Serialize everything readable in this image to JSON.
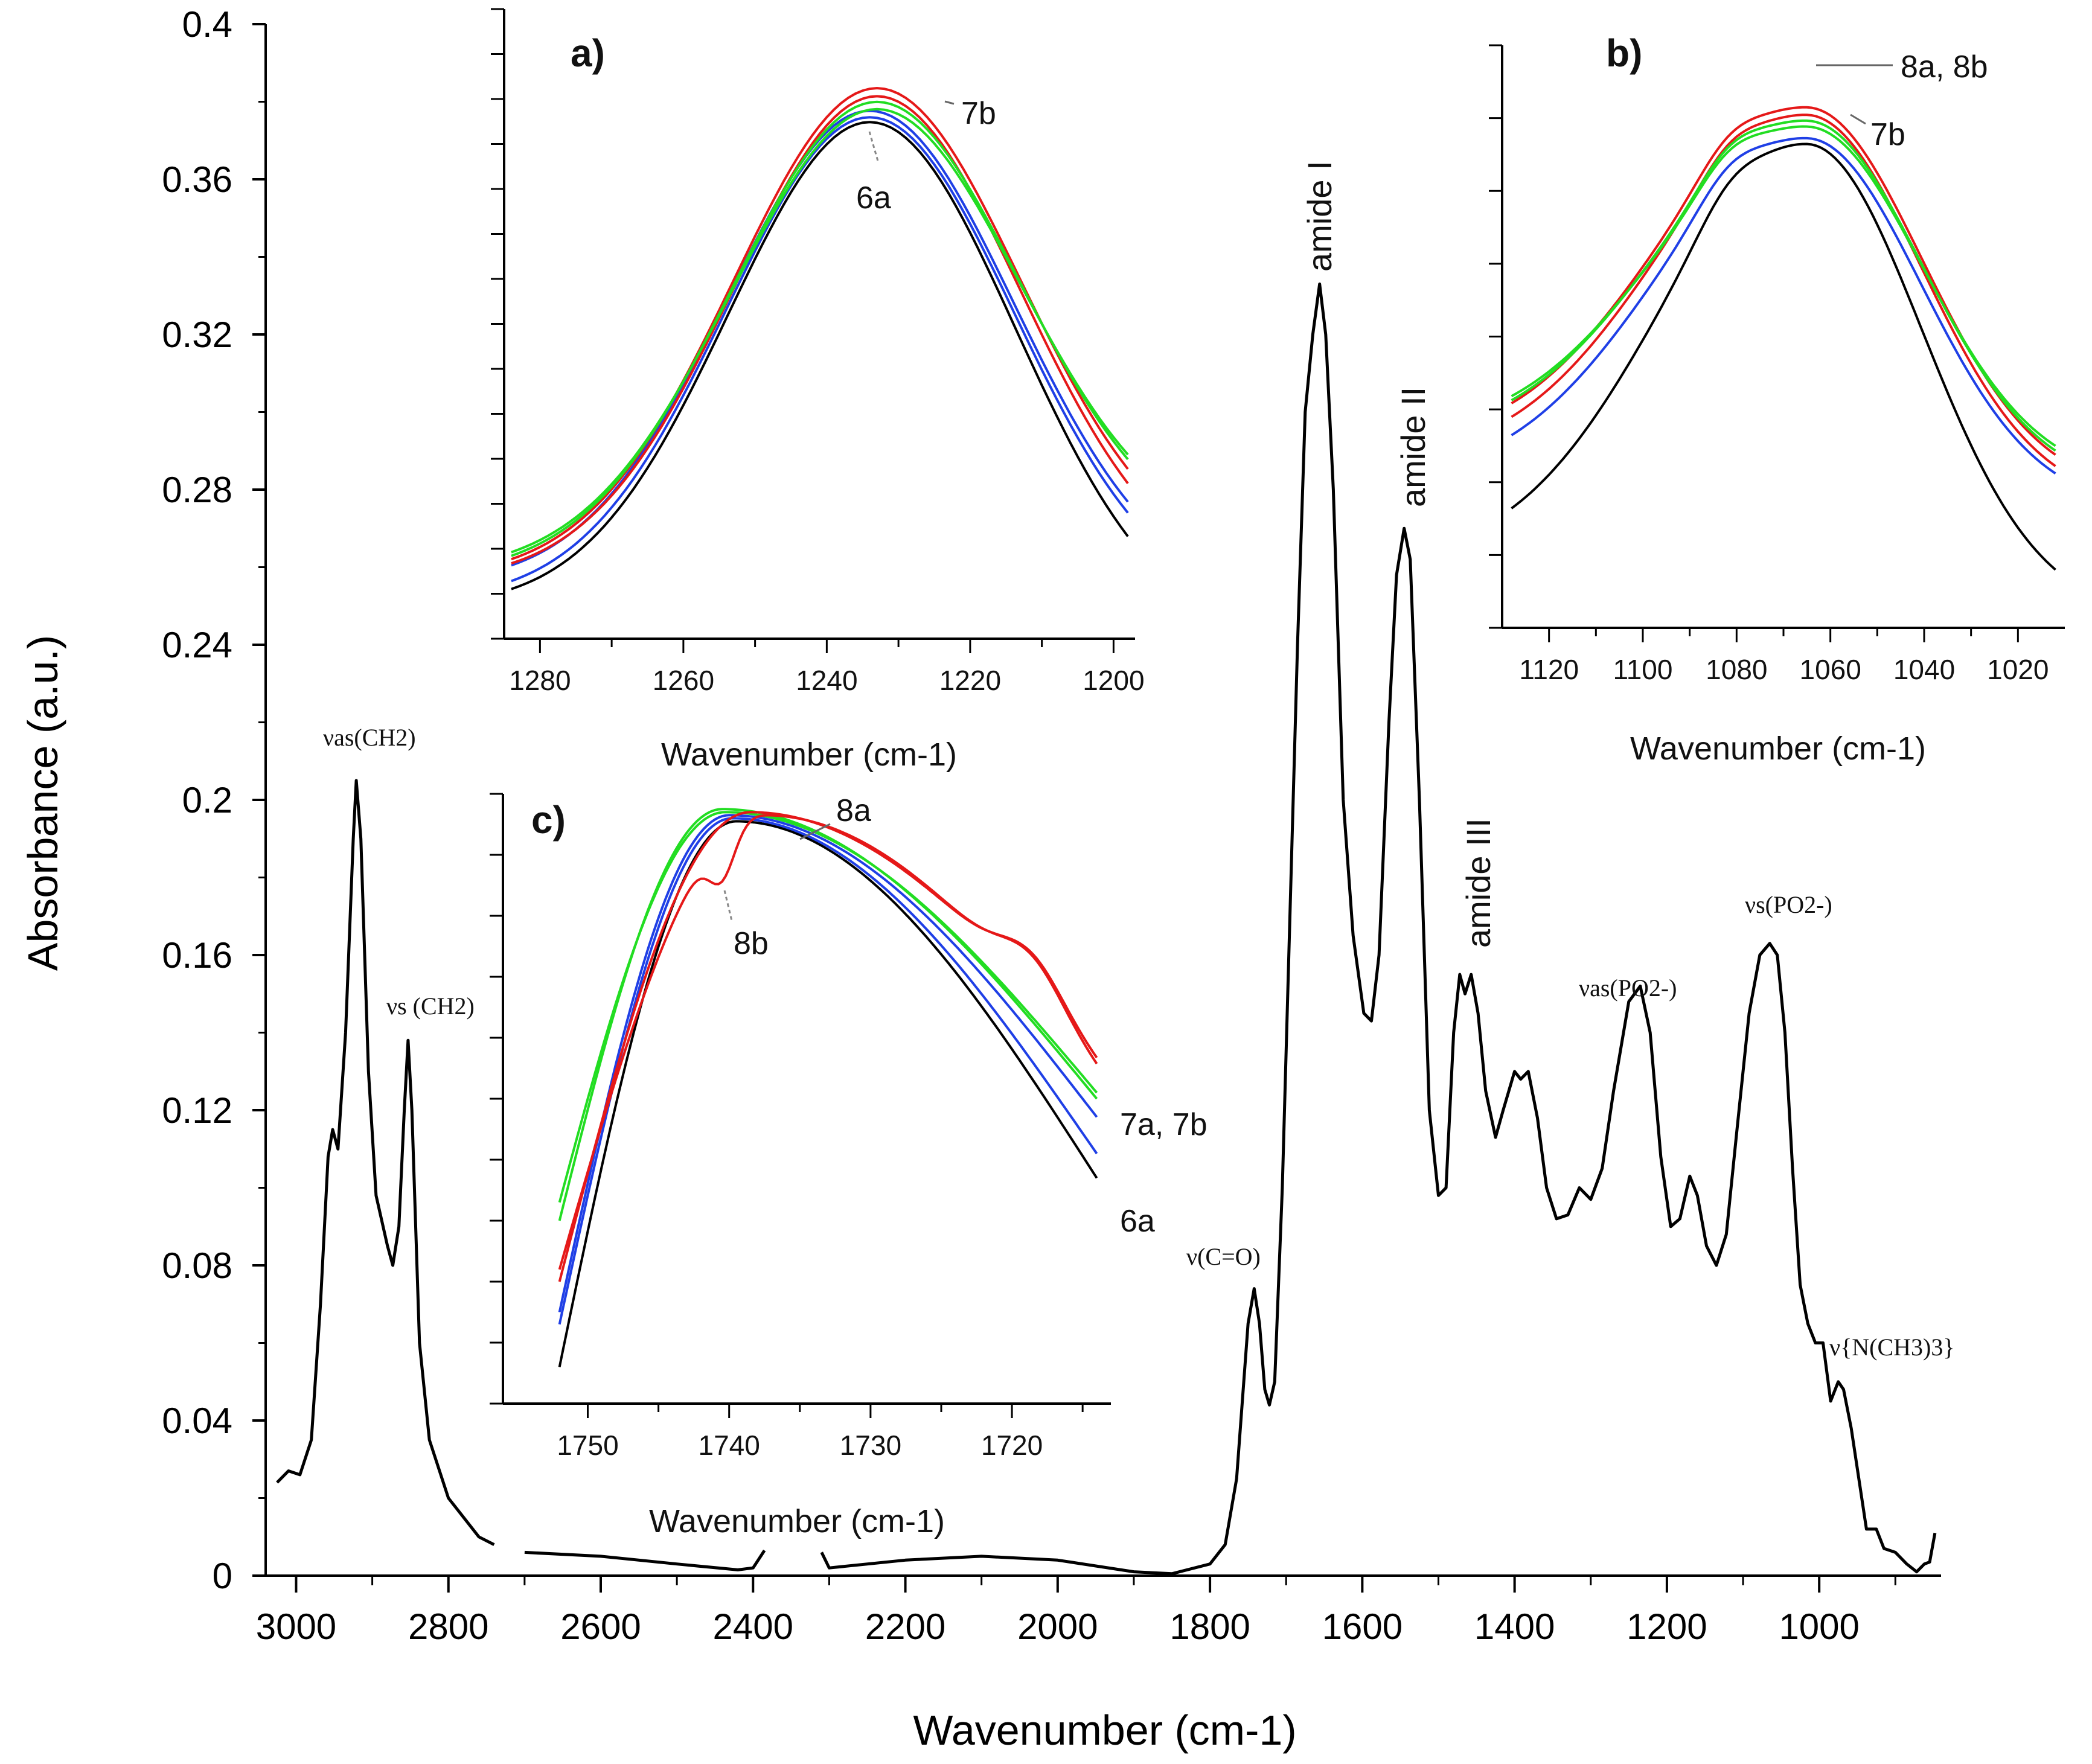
{
  "chart_data": [
    {
      "id": "main",
      "type": "line",
      "title": "",
      "xlabel": "Wavenumber (cm-1)",
      "ylabel": "Absorbance (a.u.)",
      "xlim": [
        3040,
        840
      ],
      "ylim": [
        0,
        0.4
      ],
      "x_ticks": [
        3000,
        2800,
        2600,
        2400,
        2200,
        2000,
        1800,
        1600,
        1400,
        1200,
        1000
      ],
      "x_tick_labels": [
        "3000",
        "2800",
        "2600",
        "2400",
        "2200",
        "2000",
        "1800",
        "1600",
        "1400",
        "1200",
        "1000"
      ],
      "y_ticks": [
        0,
        0.04,
        0.08,
        0.12,
        0.16,
        0.2,
        0.24,
        0.28,
        0.32,
        0.36,
        0.4
      ],
      "y_tick_labels": [
        "0",
        "0.04",
        "0.08",
        "0.12",
        "0.16",
        "0.2",
        "0.24",
        "0.28",
        "0.32",
        "0.36",
        "0.4"
      ],
      "series": [
        {
          "name": "spectrum",
          "color": "#000000",
          "points": [
            [
              3025,
              0.024
            ],
            [
              3010,
              0.027
            ],
            [
              2995,
              0.026
            ],
            [
              2980,
              0.035
            ],
            [
              2968,
              0.07
            ],
            [
              2958,
              0.108
            ],
            [
              2952,
              0.115
            ],
            [
              2945,
              0.11
            ],
            [
              2935,
              0.14
            ],
            [
              2925,
              0.19
            ],
            [
              2921,
              0.205
            ],
            [
              2915,
              0.19
            ],
            [
              2905,
              0.13
            ],
            [
              2895,
              0.098
            ],
            [
              2880,
              0.085
            ],
            [
              2873,
              0.08
            ],
            [
              2865,
              0.09
            ],
            [
              2858,
              0.12
            ],
            [
              2853,
              0.138
            ],
            [
              2848,
              0.12
            ],
            [
              2838,
              0.06
            ],
            [
              2825,
              0.035
            ],
            [
              2800,
              0.02
            ],
            [
              2760,
              0.01
            ],
            [
              2740,
              0.008
            ],
            [
              null,
              null
            ],
            [
              2700,
              0.006
            ],
            [
              2600,
              0.005
            ],
            [
              2500,
              0.003
            ],
            [
              2420,
              0.0015
            ],
            [
              2400,
              0.002
            ],
            [
              2385,
              0.0065
            ],
            [
              null,
              null
            ],
            [
              2310,
              0.006
            ],
            [
              2300,
              0.002
            ],
            [
              2200,
              0.004
            ],
            [
              2100,
              0.005
            ],
            [
              2000,
              0.004
            ],
            [
              1900,
              0.001
            ],
            [
              1850,
              0.0005
            ],
            [
              1800,
              0.003
            ],
            [
              1780,
              0.008
            ],
            [
              1765,
              0.025
            ],
            [
              1750,
              0.065
            ],
            [
              1742,
              0.074
            ],
            [
              1735,
              0.065
            ],
            [
              1728,
              0.048
            ],
            [
              1722,
              0.044
            ],
            [
              1715,
              0.05
            ],
            [
              1705,
              0.1
            ],
            [
              1695,
              0.17
            ],
            [
              1685,
              0.24
            ],
            [
              1675,
              0.3
            ],
            [
              1665,
              0.32
            ],
            [
              1656,
              0.333
            ],
            [
              1648,
              0.32
            ],
            [
              1638,
              0.28
            ],
            [
              1625,
              0.2
            ],
            [
              1612,
              0.165
            ],
            [
              1598,
              0.145
            ],
            [
              1588,
              0.143
            ],
            [
              1578,
              0.16
            ],
            [
              1565,
              0.22
            ],
            [
              1555,
              0.258
            ],
            [
              1545,
              0.27
            ],
            [
              1537,
              0.262
            ],
            [
              1525,
              0.2
            ],
            [
              1512,
              0.12
            ],
            [
              1500,
              0.098
            ],
            [
              1490,
              0.1
            ],
            [
              1480,
              0.14
            ],
            [
              1472,
              0.155
            ],
            [
              1465,
              0.15
            ],
            [
              1457,
              0.155
            ],
            [
              1448,
              0.145
            ],
            [
              1438,
              0.125
            ],
            [
              1425,
              0.113
            ],
            [
              1415,
              0.12
            ],
            [
              1400,
              0.13
            ],
            [
              1392,
              0.128
            ],
            [
              1382,
              0.13
            ],
            [
              1370,
              0.118
            ],
            [
              1358,
              0.1
            ],
            [
              1345,
              0.092
            ],
            [
              1330,
              0.093
            ],
            [
              1315,
              0.1
            ],
            [
              1300,
              0.097
            ],
            [
              1285,
              0.105
            ],
            [
              1270,
              0.125
            ],
            [
              1250,
              0.148
            ],
            [
              1235,
              0.152
            ],
            [
              1222,
              0.14
            ],
            [
              1208,
              0.108
            ],
            [
              1195,
              0.09
            ],
            [
              1183,
              0.092
            ],
            [
              1170,
              0.103
            ],
            [
              1160,
              0.098
            ],
            [
              1148,
              0.085
            ],
            [
              1135,
              0.08
            ],
            [
              1122,
              0.088
            ],
            [
              1108,
              0.115
            ],
            [
              1092,
              0.145
            ],
            [
              1078,
              0.16
            ],
            [
              1065,
              0.163
            ],
            [
              1055,
              0.16
            ],
            [
              1045,
              0.14
            ],
            [
              1035,
              0.105
            ],
            [
              1025,
              0.075
            ],
            [
              1015,
              0.065
            ],
            [
              1005,
              0.06
            ],
            [
              995,
              0.06
            ],
            [
              985,
              0.045
            ],
            [
              975,
              0.05
            ],
            [
              968,
              0.048
            ],
            [
              958,
              0.038
            ],
            [
              948,
              0.025
            ],
            [
              938,
              0.012
            ],
            [
              925,
              0.012
            ],
            [
              915,
              0.007
            ],
            [
              900,
              0.006
            ],
            [
              885,
              0.003
            ],
            [
              872,
              0.001
            ],
            [
              862,
              0.003
            ],
            [
              855,
              0.0035
            ],
            [
              848,
              0.011
            ]
          ]
        }
      ],
      "annotations": [
        "amide I",
        "amide II",
        "amide III",
        "νas(CH2)",
        "νs (CH2)",
        "ν(C=O)",
        "νas(PO2-)",
        "νs(PO2-)",
        "ν{N(CH3)3}"
      ]
    },
    {
      "id": "inset_a",
      "type": "line",
      "panel_label": "a)",
      "xlabel": "Wavenumber (cm-1)",
      "ylabel": "",
      "xlim": [
        1285,
        1197
      ],
      "ylim": [
        0.22,
        1.0
      ],
      "x_ticks": [
        1280,
        1260,
        1240,
        1220,
        1200
      ],
      "x_tick_labels": [
        "1280",
        "1260",
        "1240",
        "1220",
        "1200"
      ],
      "y_minor_ticks": 14,
      "series": [
        {
          "name": "black",
          "color": "#000000",
          "x0": 1234,
          "peak": 0.86,
          "base": 0.255,
          "left": 0.255,
          "right": 0.22
        },
        {
          "name": "blue 1",
          "color": "#1f3fe6",
          "x0": 1234,
          "peak": 0.866,
          "base": 0.275,
          "left": 0.265,
          "right": 0.255
        },
        {
          "name": "blue 2",
          "color": "#1f3fe6",
          "x0": 1234,
          "peak": 0.874,
          "base": 0.28,
          "left": 0.285,
          "right": 0.27
        },
        {
          "name": "red 1",
          "color": "#e51818",
          "x0": 1233,
          "peak": 0.892,
          "base": 0.29,
          "left": 0.29,
          "right": 0.28
        },
        {
          "name": "red 2",
          "color": "#e51818",
          "x0": 1233,
          "peak": 0.902,
          "base": 0.3,
          "left": 0.295,
          "right": 0.3
        },
        {
          "name": "green 1",
          "color": "#22dd22",
          "x0": 1233,
          "peak": 0.885,
          "base": 0.31,
          "left": 0.3,
          "right": 0.32
        },
        {
          "name": "green 2",
          "color": "#22dd22",
          "x0": 1233,
          "peak": 0.876,
          "base": 0.315,
          "left": 0.305,
          "right": 0.33
        }
      ],
      "series_labels": [
        {
          "text": "7b"
        },
        {
          "text": "6a"
        }
      ]
    },
    {
      "id": "inset_b",
      "type": "line",
      "panel_label": "b)",
      "xlabel": "Wavenumber (cm-1)",
      "ylabel": "",
      "xlim": [
        1130,
        1010
      ],
      "ylim": [
        0.0,
        1.0
      ],
      "x_ticks": [
        1120,
        1100,
        1080,
        1060,
        1040,
        1020
      ],
      "x_tick_labels": [
        "1120",
        "1100",
        "1080",
        "1060",
        "1040",
        "1020"
      ],
      "y_minor_ticks": 8,
      "series": [
        {
          "name": "black",
          "color": "#000000",
          "peak": 0.83,
          "left": 0.1,
          "right": 0.03
        },
        {
          "name": "blue",
          "color": "#1f3fe6",
          "peak": 0.84,
          "left": 0.245,
          "right": 0.21
        },
        {
          "name": "red 1",
          "color": "#e51818",
          "peak": 0.88,
          "left": 0.275,
          "right": 0.22
        },
        {
          "name": "red 2",
          "color": "#e51818",
          "peak": 0.893,
          "left": 0.3,
          "right": 0.24
        },
        {
          "name": "green 1",
          "color": "#22dd22",
          "peak": 0.86,
          "left": 0.32,
          "right": 0.26
        },
        {
          "name": "green 2",
          "color": "#22dd22",
          "peak": 0.87,
          "left": 0.31,
          "right": 0.25
        }
      ],
      "series_labels": [
        {
          "text": "8a, 8b"
        },
        {
          "text": "7b"
        }
      ]
    },
    {
      "id": "inset_c",
      "type": "line",
      "panel_label": "c)",
      "xlabel": "Wavenumber (cm-1)",
      "ylabel": "",
      "xlim": [
        1756,
        1713
      ],
      "ylim": [
        0.0,
        1.0
      ],
      "x_ticks": [
        1750,
        1740,
        1730,
        1720
      ],
      "x_tick_labels": [
        "1750",
        "1740",
        "1730",
        "1720"
      ],
      "y_minor_ticks": 10,
      "series": [
        {
          "name": "black",
          "color": "#000000",
          "peak": 0.955,
          "left": 0.06,
          "right": 0.37,
          "x0": 1739.5
        },
        {
          "name": "blue 1",
          "color": "#1f3fe6",
          "peak": 0.96,
          "left": 0.13,
          "right": 0.41,
          "x0": 1739.8
        },
        {
          "name": "blue 2",
          "color": "#1f3fe6",
          "peak": 0.965,
          "left": 0.15,
          "right": 0.47,
          "x0": 1740
        },
        {
          "name": "green 1",
          "color": "#22dd22",
          "peak": 0.975,
          "left": 0.3,
          "right": 0.5,
          "x0": 1740.5
        },
        {
          "name": "green 2",
          "color": "#22dd22",
          "peak": 0.97,
          "left": 0.33,
          "right": 0.51,
          "x0": 1740.3
        },
        {
          "name": "red 8a",
          "color": "#e51818",
          "peak": 0.97,
          "left": 0.2,
          "right": 0.56,
          "x0": 1738.5
        },
        {
          "name": "red 8b",
          "color": "#e51818",
          "peak": 0.965,
          "left": 0.22,
          "right": 0.55,
          "x0": 1737.5
        }
      ],
      "series_labels": [
        {
          "text": "8a"
        },
        {
          "text": "8b"
        },
        {
          "text": "7a, 7b"
        },
        {
          "text": "6a"
        }
      ]
    }
  ]
}
